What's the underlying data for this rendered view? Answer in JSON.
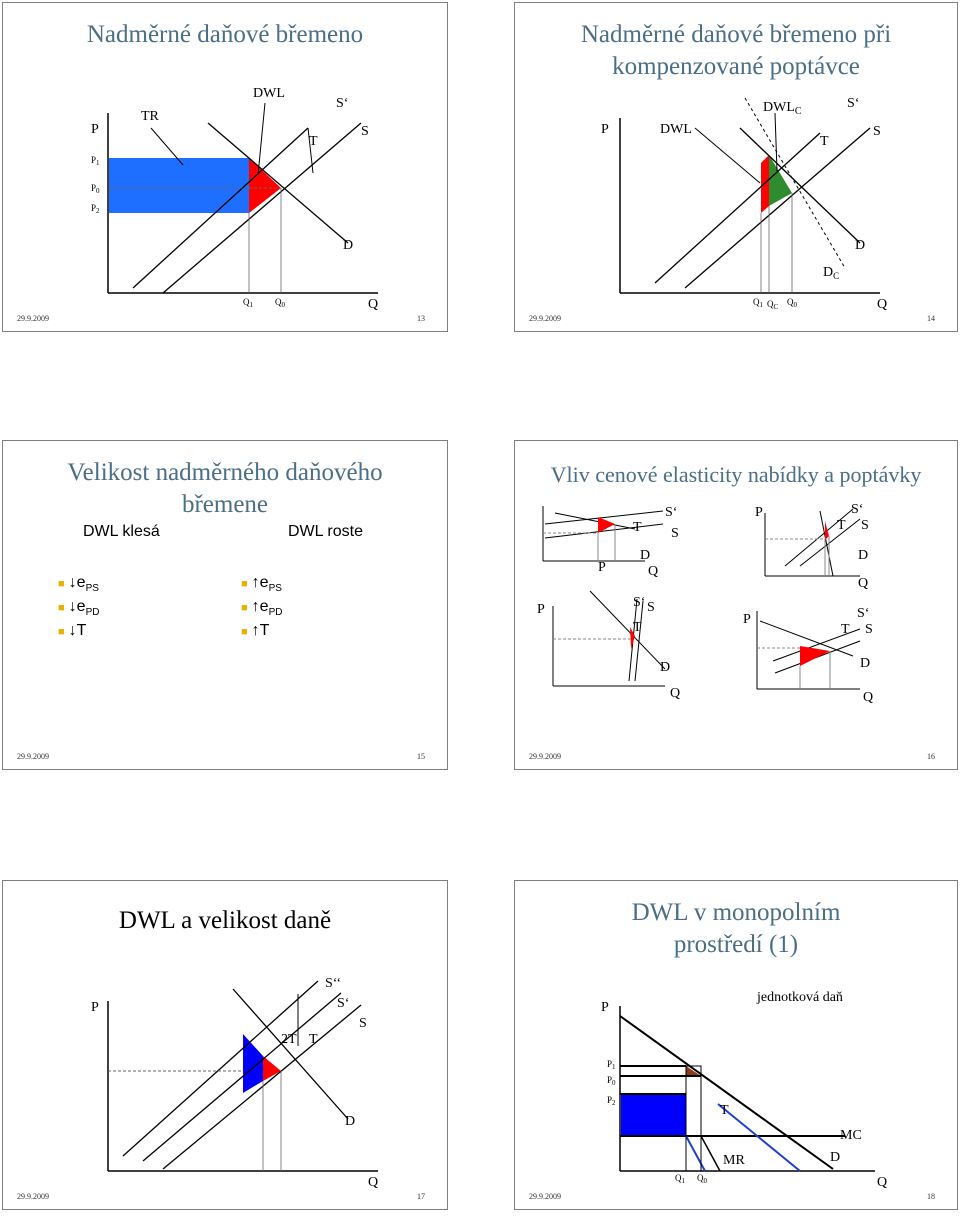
{
  "slides": [
    {
      "number": "13",
      "date": "29.9.2009",
      "title": "Nadměrné daňové břemeno",
      "labels": {
        "P": "P",
        "TR": "TR",
        "DWL": "DWL",
        "S_prime": "S‘",
        "T": "T",
        "S": "S",
        "P1": "P",
        "P1_sub": "1",
        "P0": "P",
        "P0_sub": "0",
        "P2": "P",
        "P2_sub": "2",
        "D": "D",
        "Q1": "Q",
        "Q1_sub": "1",
        "Q0": "Q",
        "Q0_sub": "0",
        "Q": "Q"
      }
    },
    {
      "number": "14",
      "date": "29.9.2009",
      "title": "Nadměrné daňové břemeno při kompenzované poptávce",
      "labels": {
        "P": "P",
        "DWL": "DWL",
        "DWLC": "DWL",
        "DWLC_sub": "C",
        "S_prime": "S‘",
        "T": "T",
        "S": "S",
        "D": "D",
        "DC": "D",
        "DC_sub": "C",
        "Q1": "Q",
        "Q1_sub": "1",
        "QC": "Q",
        "QC_sub": "C",
        "Q0": "Q",
        "Q0_sub": "0",
        "Q": "Q"
      }
    },
    {
      "number": "15",
      "date": "29.9.2009",
      "title_line1": "Velikost nadměrného daňového",
      "title_line2": "břemene",
      "col_left": "DWL klesá",
      "col_right": "DWL roste",
      "left_items": [
        {
          "arrow": "↓",
          "main": "e",
          "sub": "PS"
        },
        {
          "arrow": "↓",
          "main": "e",
          "sub": "PD"
        },
        {
          "arrow": "↓",
          "main": "T",
          "sub": ""
        }
      ],
      "right_items": [
        {
          "arrow": "↑",
          "main": "e",
          "sub": "PS"
        },
        {
          "arrow": "↑",
          "main": "e",
          "sub": "PD"
        },
        {
          "arrow": "↑",
          "main": "T",
          "sub": ""
        }
      ]
    },
    {
      "number": "16",
      "date": "29.9.2009",
      "title": "Vliv cenové elasticity nabídky a poptávky",
      "labels": {
        "P": "P",
        "S_prime": "S‘",
        "S": "S",
        "T": "T",
        "D": "D",
        "Q": "Q"
      }
    },
    {
      "number": "17",
      "date": "29.9.2009",
      "title": "DWL a velikost daně",
      "labels": {
        "P": "P",
        "S_dprime": "S‘‘",
        "S_prime": "S‘",
        "S": "S",
        "T2": "2T",
        "T": "T",
        "D": "D",
        "Q": "Q"
      }
    },
    {
      "number": "18",
      "date": "29.9.2009",
      "title_line1": "DWL v monopolním",
      "title_line2": "prostředí (1)",
      "labels": {
        "P": "P",
        "tax": "jednotková daň",
        "P1": "P",
        "P1_sub": "1",
        "P0": "P",
        "P0_sub": "0",
        "P2": "P",
        "P2_sub": "2",
        "T": "T",
        "MC": "MC",
        "MR": "MR",
        "D": "D",
        "Q1": "Q",
        "Q1_sub": "1",
        "Q0": "Q",
        "Q0_sub": "0",
        "Q": "Q"
      }
    }
  ],
  "colors": {
    "title": "#4a6e86",
    "red": "#ff0000",
    "green": "#2e8b2e",
    "blue": "#0000ff",
    "brown": "#8b3a1a",
    "bullet": "#e8b000"
  }
}
